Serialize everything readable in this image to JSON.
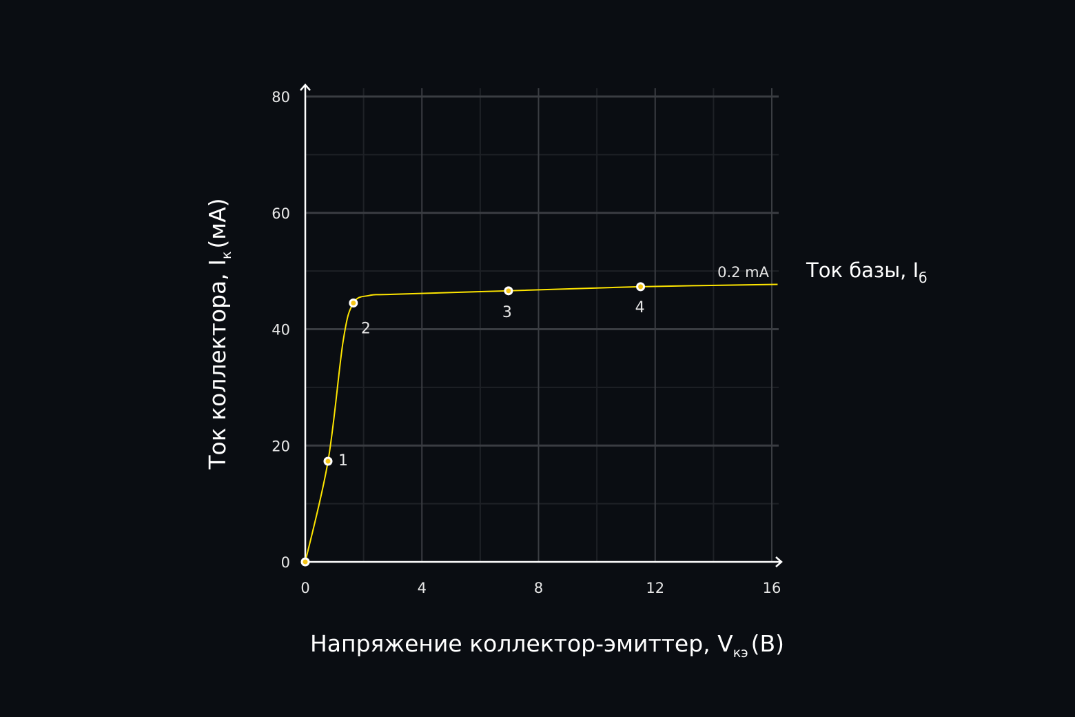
{
  "chart_data": {
    "type": "line",
    "title": "",
    "xlabel": "Напряжение коллектор-эмиттер, V",
    "xlabel_sub": "кэ",
    "xlabel_unit": "(В)",
    "ylabel": "Ток коллектора, I",
    "ylabel_sub": "к",
    "ylabel_unit": "(мА)",
    "xlim": [
      0,
      16
    ],
    "ylim": [
      0,
      80
    ],
    "x_ticks": [
      "0",
      "4",
      "8",
      "12",
      "16"
    ],
    "y_ticks": [
      "0",
      "20",
      "40",
      "60",
      "80"
    ],
    "grid": true,
    "minor_grid": true,
    "legend_title": "Ток базы, I",
    "legend_title_sub": "б",
    "series": [
      {
        "name": "0.2 mA",
        "color": "#ffe600",
        "x": [
          0,
          0.78,
          1.3,
          1.65,
          2.2,
          3.0,
          6.97,
          11.5,
          16.2
        ],
        "y": [
          0,
          17.3,
          38,
          44.5,
          45.8,
          46.0,
          46.6,
          47.3,
          47.7
        ]
      }
    ],
    "marked_points": [
      {
        "label": "",
        "x": 0,
        "y": 0
      },
      {
        "label": "1",
        "x": 0.78,
        "y": 17.3
      },
      {
        "label": "2",
        "x": 1.65,
        "y": 44.5
      },
      {
        "label": "3",
        "x": 6.97,
        "y": 46.6
      },
      {
        "label": "4",
        "x": 11.5,
        "y": 47.3
      }
    ]
  },
  "colors": {
    "background": "#0a0d12",
    "curve": "#ffe600",
    "axis": "#ffffff",
    "grid_major": "#3a3d42",
    "grid_minor": "#1e2126"
  }
}
